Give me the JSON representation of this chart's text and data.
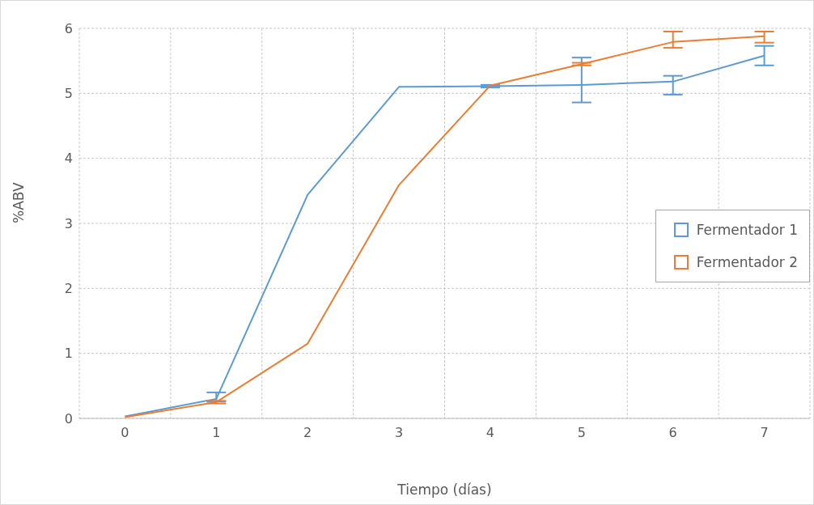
{
  "chart_data": {
    "type": "line",
    "xlabel": "Tiempo (días)",
    "ylabel": "%ABV",
    "categories": [
      "0",
      "1",
      "2",
      "3",
      "4",
      "5",
      "6",
      "7"
    ],
    "series": [
      {
        "name": "Fermentador 1",
        "color": "#5b9bd5",
        "values": [
          0.03,
          0.3,
          3.44,
          5.1,
          5.11,
          5.13,
          5.18,
          5.58
        ],
        "errors": [
          0,
          [
            0.26,
            0.4
          ],
          0,
          0,
          [
            5.09,
            5.13
          ],
          [
            4.86,
            5.55
          ],
          [
            4.98,
            5.27
          ],
          [
            5.43,
            5.73
          ]
        ]
      },
      {
        "name": "Fermentador 2",
        "color": "#ed7d31",
        "values": [
          0.02,
          0.25,
          1.15,
          3.59,
          5.12,
          5.45,
          5.79,
          5.88
        ],
        "errors": [
          0,
          [
            0.23,
            0.27
          ],
          0,
          0,
          0,
          [
            5.43,
            5.47
          ],
          [
            5.7,
            5.95
          ],
          [
            5.78,
            5.95
          ]
        ]
      }
    ],
    "ylim": [
      0,
      6
    ],
    "yticks": [
      0,
      1,
      2,
      3,
      4,
      5,
      6
    ],
    "grid": true,
    "legend": "right"
  }
}
